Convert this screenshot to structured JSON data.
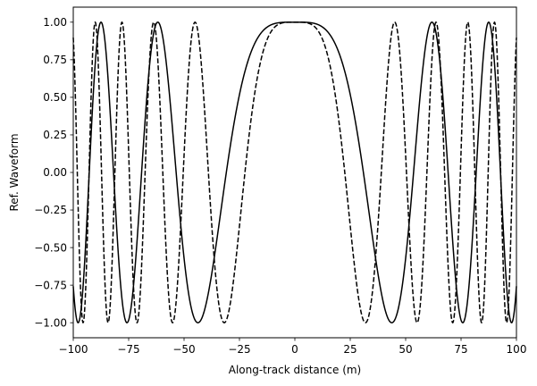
{
  "chart_data": {
    "type": "line",
    "title": "",
    "xlabel": "Along-track distance (m)",
    "ylabel": "Ref. Waveform",
    "xlim": [
      -100,
      100
    ],
    "ylim": [
      -1.1,
      1.1
    ],
    "grid": false,
    "legend": "none",
    "xticks": [
      -100,
      -75,
      -50,
      -25,
      0,
      25,
      50,
      75,
      100
    ],
    "xtick_labels": [
      "−100",
      "−75",
      "−50",
      "−25",
      "0",
      "25",
      "50",
      "75",
      "100"
    ],
    "yticks": [
      -1.0,
      -0.75,
      -0.5,
      -0.25,
      0.0,
      0.25,
      0.5,
      0.75,
      1.0
    ],
    "ytick_labels": [
      "−1.00",
      "−0.75",
      "−0.50",
      "−0.25",
      "0.00",
      "0.25",
      "0.50",
      "0.75",
      "1.00"
    ],
    "series": [
      {
        "name": "solid",
        "style": "solid",
        "color": "#000000",
        "function": "cos(k*x^2)",
        "k": 0.001642,
        "x_range": [
          -100,
          100
        ],
        "samples": 1601
      },
      {
        "name": "dashed",
        "style": "dashed",
        "color": "#000000",
        "function": "cos(k*x^2)",
        "k": 0.003096,
        "x_range": [
          -100,
          100
        ],
        "samples": 1601
      }
    ]
  }
}
